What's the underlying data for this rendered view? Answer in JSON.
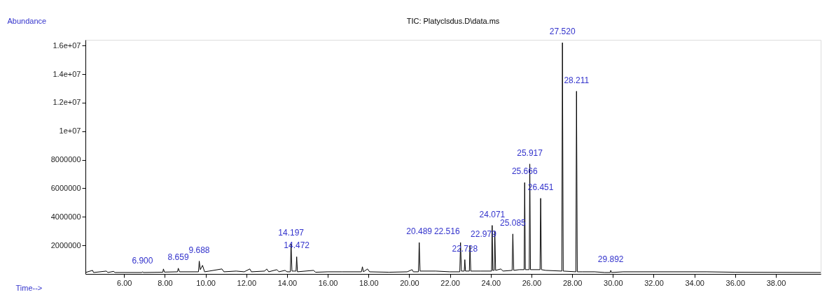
{
  "chart_data": {
    "type": "line",
    "title": "TIC: Platyclsdus.D\\data.ms",
    "xlabel": "Time-->",
    "ylabel": "Abundance",
    "grid": false,
    "xlim": [
      4.1,
      40.2
    ],
    "ylim": [
      0,
      16400000
    ],
    "xticks": [
      {
        "value": 6,
        "label": "6.00"
      },
      {
        "value": 8,
        "label": "8.00"
      },
      {
        "value": 10,
        "label": "10.00"
      },
      {
        "value": 12,
        "label": "12.00"
      },
      {
        "value": 14,
        "label": "14.00"
      },
      {
        "value": 16,
        "label": "16.00"
      },
      {
        "value": 18,
        "label": "18.00"
      },
      {
        "value": 20,
        "label": "20.00"
      },
      {
        "value": 22,
        "label": "22.00"
      },
      {
        "value": 24,
        "label": "24.00"
      },
      {
        "value": 26,
        "label": "26.00"
      },
      {
        "value": 28,
        "label": "28.00"
      },
      {
        "value": 30,
        "label": "30.00"
      },
      {
        "value": 32,
        "label": "32.00"
      },
      {
        "value": 34,
        "label": "34.00"
      },
      {
        "value": 36,
        "label": "36.00"
      },
      {
        "value": 38,
        "label": "38.00"
      }
    ],
    "yticks": [
      2000000,
      4000000,
      6000000,
      8000000,
      {
        "value": 10000000,
        "label": "1e+07"
      },
      {
        "value": 12000000,
        "label": "1.2e+07"
      },
      {
        "value": 14000000,
        "label": "1.4e+07"
      },
      {
        "value": 16000000,
        "label": "1.6e+07"
      }
    ],
    "series": [
      {
        "color": "#000000",
        "x": [
          4.1,
          4.45,
          4.5,
          5.13,
          5.2,
          5.48,
          5.55,
          6.87,
          6.9,
          6.95,
          7.9,
          7.93,
          7.98,
          8.62,
          8.659,
          8.72,
          9.65,
          9.688,
          9.74,
          9.85,
          9.95,
          10.18,
          10.8,
          10.9,
          11.5,
          11.9,
          12.17,
          12.25,
          12.9,
          13.0,
          13.1,
          13.5,
          13.6,
          13.9,
          14.0,
          14.16,
          14.197,
          14.24,
          14.44,
          14.472,
          14.51,
          15.3,
          15.4,
          16.0,
          16.7,
          17.65,
          17.7,
          17.75,
          17.95,
          18.05,
          19.0,
          19.9,
          20.14,
          20.2,
          20.45,
          20.489,
          20.53,
          21.3,
          22.0,
          22.48,
          22.516,
          22.56,
          22.7,
          22.728,
          22.76,
          22.95,
          22.979,
          23.02,
          23.5,
          24.04,
          24.071,
          24.1,
          24.17,
          24.2,
          24.24,
          24.5,
          24.6,
          25.05,
          25.085,
          25.13,
          25.4,
          25.64,
          25.666,
          25.7,
          25.89,
          25.917,
          25.95,
          26.42,
          26.451,
          26.49,
          26.7,
          27.49,
          27.52,
          27.56,
          28.18,
          28.211,
          28.25,
          28.5,
          29.1,
          29.6,
          29.87,
          29.892,
          29.93,
          30.5,
          34.6,
          36.0,
          40.2
        ],
        "values": [
          100000,
          250000,
          100000,
          200000,
          100000,
          180000,
          100000,
          100000,
          150000,
          100000,
          120000,
          350000,
          130000,
          150000,
          400000,
          150000,
          150000,
          900000,
          300000,
          600000,
          150000,
          200000,
          350000,
          150000,
          200000,
          150000,
          350000,
          150000,
          200000,
          350000,
          150000,
          300000,
          150000,
          250000,
          150000,
          150000,
          2100000,
          200000,
          200000,
          1200000,
          150000,
          250000,
          120000,
          150000,
          150000,
          150000,
          500000,
          150000,
          350000,
          150000,
          120000,
          150000,
          300000,
          150000,
          150000,
          2200000,
          200000,
          200000,
          150000,
          150000,
          2200000,
          200000,
          200000,
          1000000,
          200000,
          200000,
          2000000,
          200000,
          200000,
          200000,
          3400000,
          250000,
          250000,
          3000000,
          250000,
          350000,
          200000,
          250000,
          2800000,
          250000,
          300000,
          300000,
          6400000,
          300000,
          300000,
          7700000,
          300000,
          300000,
          5300000,
          300000,
          250000,
          200000,
          16200000,
          200000,
          150000,
          12800000,
          150000,
          150000,
          150000,
          100000,
          100000,
          250000,
          100000,
          150000,
          150000,
          120000,
          100000
        ]
      }
    ],
    "annotations": [
      {
        "text": "6.900",
        "x": 6.9,
        "y": 150000
      },
      {
        "text": "8.659",
        "x": 8.659,
        "y": 400000
      },
      {
        "text": "9.688",
        "x": 9.688,
        "y": 900000
      },
      {
        "text": "14.197",
        "x": 14.197,
        "y": 2100000
      },
      {
        "text": "14.472",
        "x": 14.472,
        "y": 1200000
      },
      {
        "text": "20.489",
        "x": 20.489,
        "y": 2200000
      },
      {
        "text": "22.516",
        "x": 22.516,
        "y": 2200000
      },
      {
        "text": "22.728",
        "x": 22.728,
        "y": 1000000
      },
      {
        "text": "22.979",
        "x": 22.979,
        "y": 2000000
      },
      {
        "text": "24.071",
        "x": 24.071,
        "y": 3400000
      },
      {
        "text": "25.085",
        "x": 25.085,
        "y": 2800000
      },
      {
        "text": "25.666",
        "x": 25.666,
        "y": 6400000
      },
      {
        "text": "25.917",
        "x": 25.917,
        "y": 7700000
      },
      {
        "text": "26.451",
        "x": 26.451,
        "y": 5300000
      },
      {
        "text": "27.520",
        "x": 27.52,
        "y": 16200000
      },
      {
        "text": "28.211",
        "x": 28.211,
        "y": 12800000
      },
      {
        "text": "29.892",
        "x": 29.892,
        "y": 250000
      }
    ]
  }
}
